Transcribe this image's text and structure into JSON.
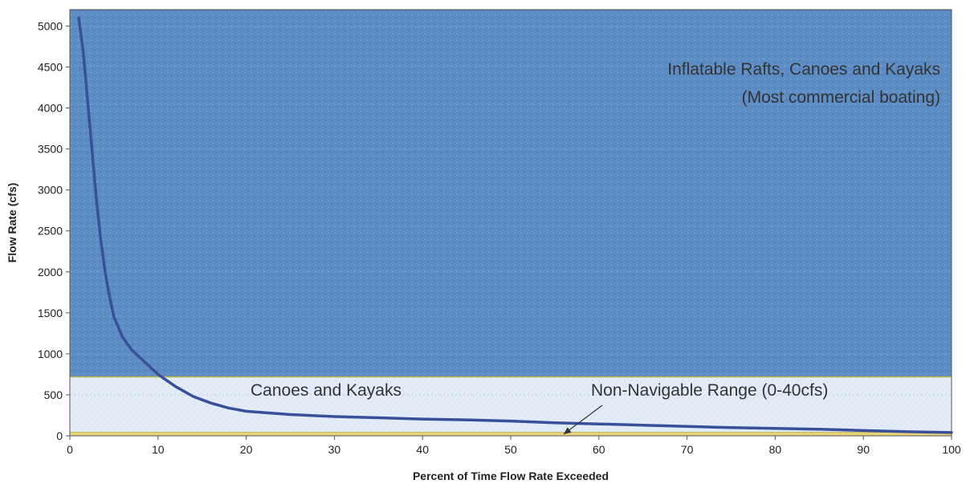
{
  "chart_data": {
    "type": "line",
    "title": "",
    "xlabel": "Percent of Time Flow Rate Exceeded",
    "ylabel": "Flow Rate (cfs)",
    "xlim": [
      0,
      100
    ],
    "ylim": [
      0,
      5200
    ],
    "xticks": [
      0,
      10,
      20,
      30,
      40,
      50,
      60,
      70,
      80,
      90,
      100
    ],
    "yticks": [
      0,
      500,
      1000,
      1500,
      2000,
      2500,
      3000,
      3500,
      4000,
      4500,
      5000
    ],
    "grid": true,
    "series": [
      {
        "color": "#3a4f9a",
        "x": [
          1,
          1.5,
          2,
          2.5,
          3,
          3.5,
          4,
          4.5,
          5,
          6,
          7,
          8,
          9,
          10,
          12,
          14,
          16,
          18,
          20,
          25,
          30,
          35,
          40,
          45,
          50,
          55,
          60,
          65,
          70,
          75,
          80,
          85,
          90,
          95,
          100
        ],
        "y": [
          5100,
          4700,
          4100,
          3500,
          2900,
          2400,
          2000,
          1700,
          1450,
          1200,
          1050,
          950,
          850,
          750,
          600,
          480,
          400,
          340,
          300,
          260,
          235,
          220,
          205,
          195,
          180,
          160,
          145,
          130,
          115,
          100,
          90,
          80,
          65,
          50,
          40
        ]
      }
    ],
    "bands": [
      {
        "name": "Inflatable Rafts, Canoes and Kayaks (Most commercial boating)",
        "from": 720,
        "to": 5200,
        "color": "#5b8cc4"
      },
      {
        "name": "Canoes and Kayaks",
        "from": 40,
        "to": 720,
        "color": "#dfe9f5"
      },
      {
        "name": "Non-Navigable Range (0-40cfs)",
        "from": 0,
        "to": 40,
        "color": "#e8d27a"
      }
    ],
    "annotations": {
      "rafts_line1": "Inflatable Rafts, Canoes and Kayaks",
      "rafts_line2": "(Most commercial boating)",
      "canoes": "Canoes and Kayaks",
      "nonnav": "Non-Navigable Range (0-40cfs)",
      "arrow_target": {
        "x": 56,
        "y": 20
      },
      "band_edge_color": "#b8b34a"
    }
  }
}
